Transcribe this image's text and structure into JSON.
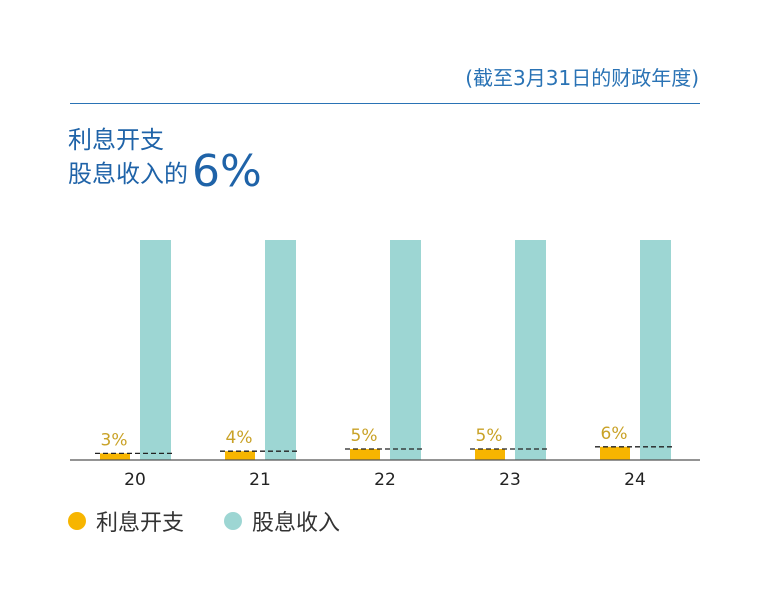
{
  "header": {
    "note": "(截至3月31日的财政年度)",
    "title_line1": "利息开支",
    "title_line2": "股息收入的",
    "title_highlight": "6%"
  },
  "colors": {
    "interest": "#f7b500",
    "dividend": "#9dd6d3",
    "accent": "#1f63a8",
    "label": "#c9a227"
  },
  "chart_data": {
    "type": "bar",
    "categories": [
      "20",
      "21",
      "22",
      "23",
      "24"
    ],
    "series": [
      {
        "name": "利息开支",
        "values": [
          3,
          4,
          5,
          5,
          6
        ],
        "labels": [
          "3%",
          "4%",
          "5%",
          "5%",
          "6%"
        ]
      },
      {
        "name": "股息收入",
        "values": [
          100,
          100,
          100,
          100,
          100
        ]
      }
    ],
    "ylim": [
      0,
      100
    ]
  },
  "legend": [
    "利息开支",
    "股息收入"
  ]
}
